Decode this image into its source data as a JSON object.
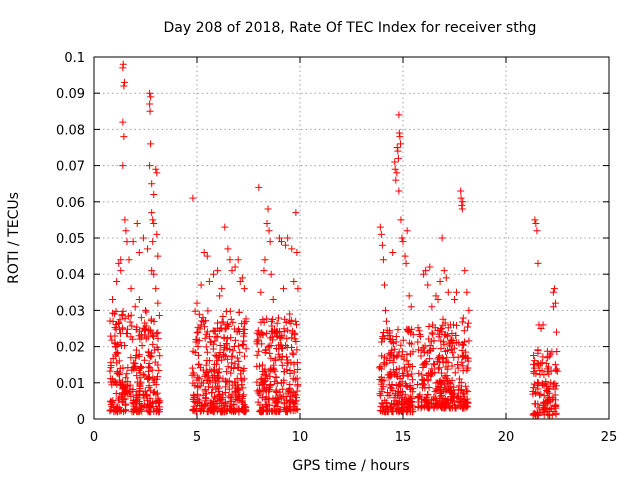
{
  "chart_data": {
    "type": "scatter",
    "title": "Day 208 of 2018, Rate Of TEC Index for receiver sthg",
    "xlabel": "GPS time / hours",
    "ylabel": "ROTI / TECUs",
    "xlim": [
      0,
      25
    ],
    "ylim": [
      0,
      0.1
    ],
    "xticks": [
      0,
      5,
      10,
      15,
      20,
      25
    ],
    "xtick_labels": [
      "0",
      "5",
      "10",
      "15",
      "20",
      "25"
    ],
    "yticks": [
      0,
      0.01,
      0.02,
      0.03,
      0.04,
      0.05,
      0.06,
      0.07,
      0.08,
      0.09,
      0.1
    ],
    "ytick_labels": [
      "0",
      "0.01",
      "0.02",
      "0.03",
      "0.04",
      "0.05",
      "0.06",
      "0.07",
      "0.08",
      "0.09",
      "0.1"
    ],
    "grid": true,
    "marker": "+",
    "color": "#ff0000",
    "series": [
      {
        "name": "ROTI",
        "points": [
          [
            0.9,
            0.033
          ],
          [
            1.0,
            0.029
          ],
          [
            1.1,
            0.038
          ],
          [
            1.2,
            0.043
          ],
          [
            1.3,
            0.041
          ],
          [
            1.4,
            0.097
          ],
          [
            1.42,
            0.098
          ],
          [
            1.45,
            0.092
          ],
          [
            1.48,
            0.093
          ],
          [
            1.4,
            0.082
          ],
          [
            1.45,
            0.078
          ],
          [
            1.4,
            0.07
          ],
          [
            1.5,
            0.055
          ],
          [
            1.55,
            0.052
          ],
          [
            1.6,
            0.049
          ],
          [
            1.7,
            0.044
          ],
          [
            1.8,
            0.036
          ],
          [
            1.9,
            0.049
          ],
          [
            2.0,
            0.031
          ],
          [
            2.1,
            0.054
          ],
          [
            2.2,
            0.033
          ],
          [
            2.3,
            0.028
          ],
          [
            2.4,
            0.05
          ],
          [
            2.5,
            0.03
          ],
          [
            2.6,
            0.047
          ],
          [
            2.2,
            0.046
          ],
          [
            1.3,
            0.044
          ],
          [
            2.7,
            0.09
          ],
          [
            2.75,
            0.089
          ],
          [
            2.7,
            0.087
          ],
          [
            2.72,
            0.085
          ],
          [
            2.75,
            0.076
          ],
          [
            2.7,
            0.07
          ],
          [
            2.8,
            0.065
          ],
          [
            2.9,
            0.062
          ],
          [
            3.0,
            0.069
          ],
          [
            3.05,
            0.068
          ],
          [
            2.8,
            0.057
          ],
          [
            2.85,
            0.055
          ],
          [
            2.9,
            0.054
          ],
          [
            3.05,
            0.051
          ],
          [
            2.85,
            0.049
          ],
          [
            3.1,
            0.045
          ],
          [
            2.8,
            0.041
          ],
          [
            2.9,
            0.04
          ],
          [
            3.0,
            0.036
          ],
          [
            3.1,
            0.032
          ],
          [
            4.8,
            0.061
          ],
          [
            5.0,
            0.032
          ],
          [
            5.2,
            0.037
          ],
          [
            5.35,
            0.046
          ],
          [
            5.5,
            0.045
          ],
          [
            5.6,
            0.038
          ],
          [
            5.8,
            0.04
          ],
          [
            6.0,
            0.041
          ],
          [
            6.1,
            0.034
          ],
          [
            6.2,
            0.036
          ],
          [
            6.35,
            0.053
          ],
          [
            6.5,
            0.047
          ],
          [
            6.6,
            0.044
          ],
          [
            6.7,
            0.041
          ],
          [
            6.85,
            0.042
          ],
          [
            7.0,
            0.044
          ],
          [
            7.1,
            0.038
          ],
          [
            7.2,
            0.039
          ],
          [
            7.3,
            0.036
          ],
          [
            8.0,
            0.064
          ],
          [
            8.1,
            0.035
          ],
          [
            8.25,
            0.041
          ],
          [
            8.3,
            0.044
          ],
          [
            8.4,
            0.054
          ],
          [
            8.45,
            0.058
          ],
          [
            8.5,
            0.052
          ],
          [
            8.55,
            0.049
          ],
          [
            8.6,
            0.04
          ],
          [
            8.7,
            0.033
          ],
          [
            9.0,
            0.05
          ],
          [
            9.1,
            0.049
          ],
          [
            9.2,
            0.036
          ],
          [
            9.3,
            0.048
          ],
          [
            9.4,
            0.05
          ],
          [
            9.5,
            0.029
          ],
          [
            9.6,
            0.047
          ],
          [
            9.7,
            0.038
          ],
          [
            9.8,
            0.057
          ],
          [
            9.85,
            0.046
          ],
          [
            9.9,
            0.036
          ],
          [
            13.9,
            0.053
          ],
          [
            13.95,
            0.051
          ],
          [
            14.0,
            0.048
          ],
          [
            14.05,
            0.044
          ],
          [
            14.1,
            0.037
          ],
          [
            14.15,
            0.03
          ],
          [
            14.2,
            0.027
          ],
          [
            14.5,
            0.046
          ],
          [
            14.6,
            0.071
          ],
          [
            14.62,
            0.069
          ],
          [
            14.65,
            0.066
          ],
          [
            14.7,
            0.068
          ],
          [
            14.72,
            0.075
          ],
          [
            14.75,
            0.074
          ],
          [
            14.78,
            0.072
          ],
          [
            14.8,
            0.084
          ],
          [
            14.82,
            0.079
          ],
          [
            14.85,
            0.078
          ],
          [
            14.88,
            0.076
          ],
          [
            14.8,
            0.063
          ],
          [
            14.9,
            0.055
          ],
          [
            14.95,
            0.05
          ],
          [
            15.0,
            0.049
          ],
          [
            15.1,
            0.045
          ],
          [
            15.15,
            0.043
          ],
          [
            15.2,
            0.052
          ],
          [
            15.3,
            0.034
          ],
          [
            15.4,
            0.031
          ],
          [
            16.0,
            0.04
          ],
          [
            16.1,
            0.041
          ],
          [
            16.2,
            0.037
          ],
          [
            16.3,
            0.042
          ],
          [
            16.4,
            0.031
          ],
          [
            16.6,
            0.034
          ],
          [
            16.7,
            0.033
          ],
          [
            16.8,
            0.038
          ],
          [
            16.9,
            0.05
          ],
          [
            17.0,
            0.041
          ],
          [
            17.1,
            0.039
          ],
          [
            17.2,
            0.035
          ],
          [
            17.3,
            0.026
          ],
          [
            17.5,
            0.033
          ],
          [
            17.6,
            0.035
          ],
          [
            17.8,
            0.063
          ],
          [
            17.82,
            0.061
          ],
          [
            17.85,
            0.059
          ],
          [
            17.88,
            0.058
          ],
          [
            17.9,
            0.06
          ],
          [
            18.0,
            0.041
          ],
          [
            18.1,
            0.035
          ],
          [
            18.2,
            0.03
          ],
          [
            21.4,
            0.055
          ],
          [
            21.45,
            0.054
          ],
          [
            21.5,
            0.052
          ],
          [
            21.55,
            0.043
          ],
          [
            21.6,
            0.026
          ],
          [
            21.7,
            0.025
          ],
          [
            21.8,
            0.026
          ],
          [
            22.3,
            0.031
          ],
          [
            22.35,
            0.036
          ],
          [
            22.4,
            0.032
          ],
          [
            22.45,
            0.024
          ],
          [
            22.3,
            0.035
          ]
        ],
        "dense_clusters": [
          {
            "x_start": 0.75,
            "x_end": 3.2,
            "y_min": 0.002,
            "y_max": 0.03,
            "n": 320
          },
          {
            "x_start": 4.75,
            "x_end": 7.4,
            "y_min": 0.002,
            "y_max": 0.03,
            "n": 360
          },
          {
            "x_start": 7.9,
            "x_end": 9.9,
            "y_min": 0.002,
            "y_max": 0.028,
            "n": 260
          },
          {
            "x_start": 13.85,
            "x_end": 15.5,
            "y_min": 0.002,
            "y_max": 0.025,
            "n": 220
          },
          {
            "x_start": 15.7,
            "x_end": 18.2,
            "y_min": 0.003,
            "y_max": 0.028,
            "n": 320
          },
          {
            "x_start": 21.3,
            "x_end": 22.5,
            "y_min": 0.001,
            "y_max": 0.02,
            "n": 120
          }
        ]
      }
    ]
  }
}
